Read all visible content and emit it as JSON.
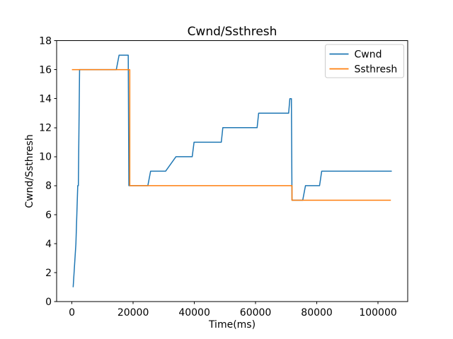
{
  "figure": {
    "background": "#ffffff"
  },
  "chart_data": {
    "type": "line",
    "title": "Cwnd/Ssthresh",
    "xlabel": "Time(ms)",
    "ylabel": "Cwnd/Ssthresh",
    "xlim": [
      -5000,
      109700
    ],
    "ylim": [
      0,
      18
    ],
    "xticks": [
      0,
      20000,
      40000,
      60000,
      80000,
      100000
    ],
    "yticks": [
      0,
      2,
      4,
      6,
      8,
      10,
      12,
      14,
      16,
      18
    ],
    "grid": false,
    "axis_color": "#000000",
    "legend": {
      "position": "upper right",
      "entries": [
        {
          "label": "Cwnd",
          "color": "#1f77b4"
        },
        {
          "label": "Ssthresh",
          "color": "#ff7f0e"
        }
      ]
    },
    "series": [
      {
        "name": "Cwnd",
        "color": "#1f77b4",
        "points": [
          [
            400,
            1
          ],
          [
            700,
            2
          ],
          [
            1300,
            4
          ],
          [
            1900,
            8
          ],
          [
            2100,
            8
          ],
          [
            2500,
            16
          ],
          [
            14500,
            16
          ],
          [
            15400,
            17
          ],
          [
            18400,
            17
          ],
          [
            18600,
            8
          ],
          [
            24800,
            8
          ],
          [
            25700,
            9
          ],
          [
            30600,
            9
          ],
          [
            34000,
            10
          ],
          [
            39300,
            10
          ],
          [
            39900,
            11
          ],
          [
            48800,
            11
          ],
          [
            49300,
            12
          ],
          [
            60500,
            12
          ],
          [
            61000,
            13
          ],
          [
            70800,
            13
          ],
          [
            71200,
            14
          ],
          [
            71700,
            14
          ],
          [
            71900,
            7
          ],
          [
            75400,
            7
          ],
          [
            76300,
            8
          ],
          [
            80900,
            8
          ],
          [
            81600,
            9
          ],
          [
            104500,
            9
          ]
        ]
      },
      {
        "name": "Ssthresh",
        "color": "#ff7f0e",
        "points": [
          [
            0,
            16
          ],
          [
            18900,
            16
          ],
          [
            18900,
            8
          ],
          [
            71900,
            8
          ],
          [
            71900,
            7
          ],
          [
            104200,
            7
          ]
        ]
      }
    ]
  }
}
